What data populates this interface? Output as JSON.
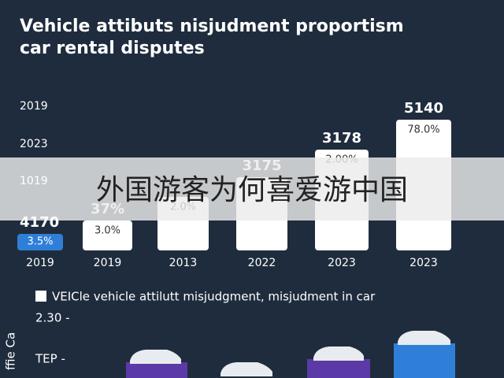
{
  "header": {
    "title_line1": "Vehicle attibuts nisjudment proportism",
    "title_line2": "car rental disputes"
  },
  "left_labels": [
    "2019",
    "2023",
    "1019",
    "4170"
  ],
  "bars": [
    {
      "top": null,
      "inner": "3.5%",
      "category": "2019"
    },
    {
      "top": "37%",
      "inner": "3.0%",
      "category": "2019"
    },
    {
      "top": null,
      "inner": "2.0%",
      "category": "2013"
    },
    {
      "top": "3175",
      "inner": null,
      "category": "2022"
    },
    {
      "top": "3178",
      "inner": "2.00%",
      "category": "2023"
    },
    {
      "top": "5140",
      "inner": "78.0%",
      "category": "2023"
    }
  ],
  "legend": "VEICle vehicle attilutt misjudgment, misjudment in car",
  "lower_labels": [
    "2.30 -",
    "TEP -"
  ],
  "side_label": "ffie Ca",
  "overlay": "外国游客为何喜爱游中国"
}
